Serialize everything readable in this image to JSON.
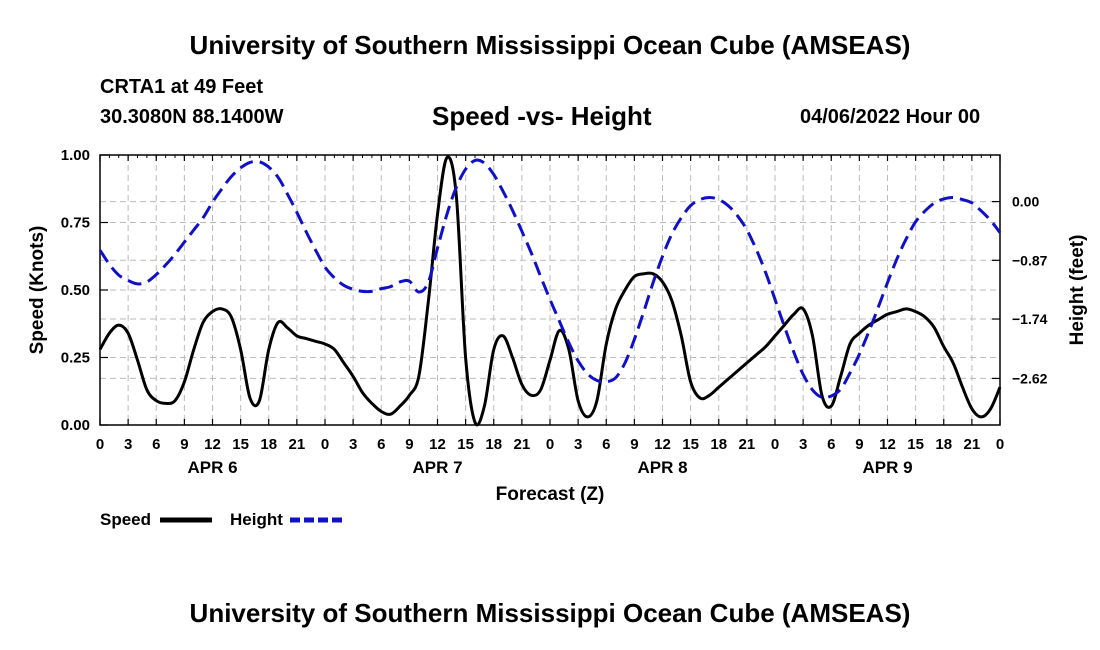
{
  "header": {
    "title": "University of Southern Mississippi Ocean Cube (AMSEAS)",
    "station": "CRTA1 at 49 Feet",
    "coordinates": "30.3080N  88.1400W",
    "chart_title": "Speed -vs- Height",
    "datetime": "04/06/2022 Hour 00"
  },
  "footer": {
    "title": "University of Southern Mississippi Ocean Cube (AMSEAS)"
  },
  "legend": {
    "speed_label": "Speed",
    "height_label": "Height"
  },
  "colors": {
    "speed": "#000000",
    "height": "#1010c8",
    "grid": "#bbbbbb"
  },
  "chart_data": {
    "type": "line",
    "title": "Speed -vs- Height",
    "xlabel": "Forecast (Z)",
    "ylabel_left": "Speed (Knots)",
    "ylabel_right": "Height (feet)",
    "x_range_hours": [
      0,
      96
    ],
    "x_tick_labels": [
      "0",
      "3",
      "6",
      "9",
      "12",
      "15",
      "18",
      "21",
      "0",
      "3",
      "6",
      "9",
      "12",
      "15",
      "18",
      "21",
      "0",
      "3",
      "6",
      "9",
      "12",
      "15",
      "18",
      "21",
      "0",
      "3",
      "6",
      "9",
      "12",
      "15",
      "18",
      "21",
      "0"
    ],
    "day_labels": [
      {
        "label": "APR 6",
        "hour": 12
      },
      {
        "label": "APR 7",
        "hour": 36
      },
      {
        "label": "APR 8",
        "hour": 60
      },
      {
        "label": "APR 9",
        "hour": 84
      }
    ],
    "left_axis": {
      "ylim": [
        0,
        1
      ],
      "ticks": [
        0.0,
        0.25,
        0.5,
        0.75,
        1.0
      ],
      "tick_labels": [
        "0.00",
        "0.25",
        "0.50",
        "0.75",
        "1.00"
      ]
    },
    "right_axis": {
      "ylim": [
        -3.31,
        0.69
      ],
      "ticks": [
        -2.62,
        -1.74,
        -0.87,
        0.0
      ],
      "tick_labels": [
        "−2.62",
        "−1.74",
        "−0.87",
        "0.00"
      ]
    },
    "series": [
      {
        "name": "Speed",
        "axis": "left",
        "style": "solid",
        "x": [
          0,
          1,
          2,
          3,
          4,
          5,
          6,
          7,
          8,
          9,
          10,
          11,
          12,
          13,
          14,
          15,
          16,
          17,
          18,
          19,
          20,
          21,
          22,
          23,
          24,
          25,
          26,
          27,
          28,
          29,
          30,
          31,
          32,
          33,
          34,
          35,
          36,
          37,
          38,
          39,
          40,
          41,
          42,
          43,
          44,
          45,
          46,
          47,
          48,
          49,
          50,
          51,
          52,
          53,
          54,
          55,
          56,
          57,
          58,
          59,
          60,
          61,
          62,
          63,
          64,
          65,
          66,
          67,
          68,
          69,
          70,
          71,
          72,
          73,
          74,
          75,
          76,
          77,
          78,
          79,
          80,
          81,
          82,
          83,
          84,
          85,
          86,
          87,
          88,
          89,
          90,
          91,
          92,
          93,
          94,
          95,
          96
        ],
        "values": [
          0.28,
          0.34,
          0.37,
          0.34,
          0.24,
          0.13,
          0.09,
          0.08,
          0.09,
          0.16,
          0.28,
          0.38,
          0.42,
          0.43,
          0.4,
          0.28,
          0.1,
          0.09,
          0.28,
          0.38,
          0.36,
          0.33,
          0.32,
          0.31,
          0.3,
          0.28,
          0.23,
          0.18,
          0.12,
          0.08,
          0.05,
          0.04,
          0.07,
          0.11,
          0.18,
          0.45,
          0.78,
          0.99,
          0.85,
          0.25,
          0.01,
          0.07,
          0.28,
          0.33,
          0.25,
          0.15,
          0.11,
          0.13,
          0.24,
          0.35,
          0.28,
          0.09,
          0.03,
          0.09,
          0.3,
          0.43,
          0.5,
          0.55,
          0.56,
          0.56,
          0.53,
          0.46,
          0.33,
          0.16,
          0.1,
          0.11,
          0.14,
          0.17,
          0.2,
          0.23,
          0.26,
          0.29,
          0.33,
          0.37,
          0.41,
          0.43,
          0.33,
          0.11,
          0.07,
          0.18,
          0.3,
          0.34,
          0.37,
          0.39,
          0.41,
          0.42,
          0.43,
          0.42,
          0.4,
          0.36,
          0.29,
          0.23,
          0.14,
          0.06,
          0.03,
          0.06,
          0.14
        ]
      },
      {
        "name": "Height",
        "axis": "right",
        "style": "dashed",
        "x": [
          0,
          1,
          2,
          3,
          4,
          5,
          6,
          7,
          8,
          9,
          10,
          11,
          12,
          13,
          14,
          15,
          16,
          17,
          18,
          19,
          20,
          21,
          22,
          23,
          24,
          25,
          26,
          27,
          28,
          29,
          30,
          31,
          32,
          33,
          34,
          35,
          36,
          37,
          38,
          39,
          40,
          41,
          42,
          43,
          44,
          45,
          46,
          47,
          48,
          49,
          50,
          51,
          52,
          53,
          54,
          55,
          56,
          57,
          58,
          59,
          60,
          61,
          62,
          63,
          64,
          65,
          66,
          67,
          68,
          69,
          70,
          71,
          72,
          73,
          74,
          75,
          76,
          77,
          78,
          79,
          80,
          81,
          82,
          83,
          84,
          85,
          86,
          87,
          88,
          89,
          90,
          91,
          92,
          93,
          94,
          95,
          96
        ],
        "values": [
          -0.72,
          -0.93,
          -1.09,
          -1.17,
          -1.22,
          -1.19,
          -1.08,
          -0.94,
          -0.78,
          -0.6,
          -0.42,
          -0.24,
          -0.01,
          0.19,
          0.37,
          0.5,
          0.58,
          0.59,
          0.51,
          0.36,
          0.11,
          -0.16,
          -0.45,
          -0.72,
          -0.97,
          -1.13,
          -1.24,
          -1.3,
          -1.33,
          -1.33,
          -1.29,
          -1.26,
          -1.19,
          -1.18,
          -1.34,
          -1.2,
          -0.69,
          -0.19,
          0.21,
          0.48,
          0.61,
          0.57,
          0.4,
          0.15,
          -0.13,
          -0.44,
          -0.76,
          -1.11,
          -1.45,
          -1.77,
          -2.09,
          -2.36,
          -2.55,
          -2.65,
          -2.67,
          -2.61,
          -2.39,
          -2.04,
          -1.63,
          -1.2,
          -0.81,
          -0.48,
          -0.24,
          -0.06,
          0.03,
          0.06,
          0.03,
          -0.06,
          -0.21,
          -0.42,
          -0.71,
          -1.05,
          -1.45,
          -1.85,
          -2.23,
          -2.56,
          -2.79,
          -2.9,
          -2.88,
          -2.78,
          -2.54,
          -2.26,
          -1.93,
          -1.57,
          -1.2,
          -0.85,
          -0.55,
          -0.3,
          -0.14,
          -0.02,
          0.04,
          0.06,
          0.03,
          -0.02,
          -0.14,
          -0.28,
          -0.46
        ]
      }
    ]
  }
}
